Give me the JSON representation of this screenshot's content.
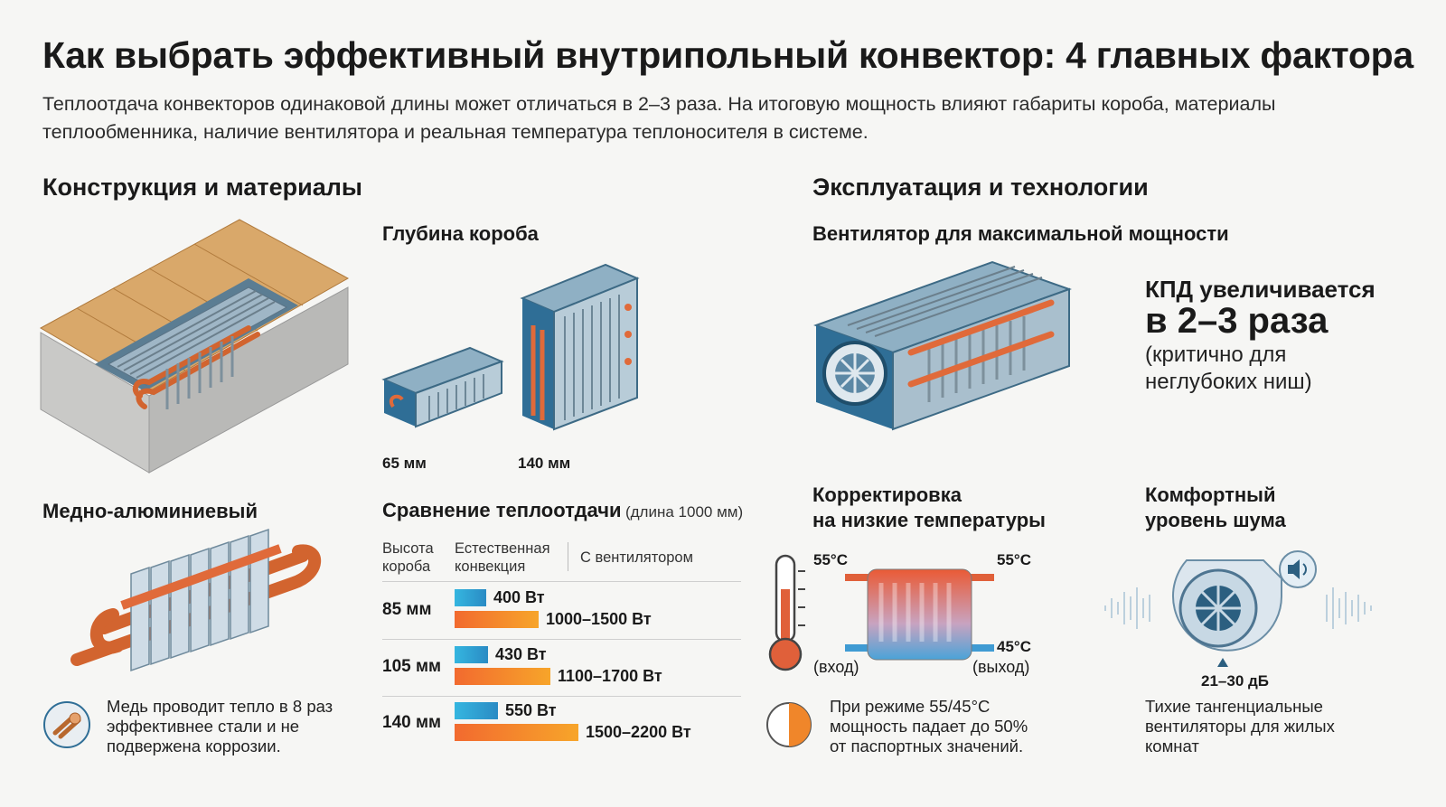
{
  "title": "Как выбрать эффективный внутрипольный конвектор: 4 главных фактора",
  "subtitle": "Теплоотдача конвекторов одинаковой длины может отличаться в 2–3 раза. На итоговую мощность влияют габариты короба, материалы теплообменника, наличие вентилятора и реальная температура теплоносителя в системе.",
  "left_section": {
    "heading": "Конструкция и материалы",
    "depth": {
      "heading": "Глубина короба",
      "small_label": "65 мм",
      "large_label": "140 мм"
    },
    "material": {
      "heading": "Медно-алюминиевый",
      "note": "Медь проводит тепло в 8 раз эффективнее стали и не подвержена коррозии."
    },
    "comparison": {
      "heading": "Сравнение теплоотдачи",
      "heading_note": "(длина 1000 мм)",
      "col_height": "Высота короба",
      "col_natural": "Естественная конвекция",
      "col_fan": "С вентилятором",
      "rows": [
        {
          "height": "85 мм",
          "natural": "400 Вт",
          "fan": "1000–1500 Вт",
          "natural_w": 400,
          "fan_w": 1500
        },
        {
          "height": "105 мм",
          "natural": "430 Вт",
          "fan": "1100–1700 Вт",
          "natural_w": 430,
          "fan_w": 1700
        },
        {
          "height": "140 мм",
          "natural": "550 Вт",
          "fan": "1500–2200 Вт",
          "natural_w": 550,
          "fan_w": 2200
        }
      ]
    }
  },
  "right_section": {
    "heading": "Эксплуатация и технологии",
    "fan": {
      "heading": "Вентилятор для максимальной мощности",
      "kpd_line1": "КПД увеличивается",
      "kpd_line2": "в 2–3 раза",
      "kpd_line3": "(критично для неглубоких ниш)"
    },
    "lowtemp": {
      "heading_line1": "Корректировка",
      "heading_line2": "на низкие температуры",
      "temp_in": "55°C",
      "temp_top_right": "55°C",
      "temp_out": "45°C",
      "label_in": "(вход)",
      "label_out": "(выход)",
      "note": "При режиме 55/45°C мощность падает до 50% от паспортных значений."
    },
    "noise": {
      "heading_line1": "Комфортный",
      "heading_line2": "уровень шума",
      "db": "21–30 дБ",
      "note": "Тихие тангенциальные вентиляторы для жилых комнат"
    }
  },
  "colors": {
    "copper": "#e06a3a",
    "steel_blue": "#2f6e96",
    "natural_bar": "#3aa7d6",
    "fan_bar": "#f08a2a"
  }
}
